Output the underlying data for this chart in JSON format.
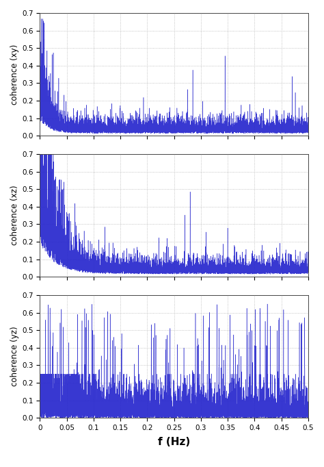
{
  "xlabel": "f (Hz)",
  "ylabels": [
    "coherence (xy)",
    "coherence (xz)",
    "coherence (yz)"
  ],
  "xlim": [
    0,
    0.5
  ],
  "ylim": [
    0,
    0.7
  ],
  "yticks": [
    0,
    0.1,
    0.2,
    0.3,
    0.4,
    0.5,
    0.6,
    0.7
  ],
  "xticks": [
    0,
    0.05,
    0.1,
    0.15,
    0.2,
    0.25,
    0.3,
    0.35,
    0.4,
    0.45,
    0.5
  ],
  "xtick_labels": [
    "0",
    "0.05",
    "0.1",
    "0.15",
    "0.2",
    "0.25",
    "0.3",
    "0.35",
    "0.4",
    "0.45",
    "0.5"
  ],
  "line_color": "#2222CC",
  "background_color": "#ffffff",
  "grid_color": "#aaaaaa",
  "n_points": 8000,
  "seed": 7
}
